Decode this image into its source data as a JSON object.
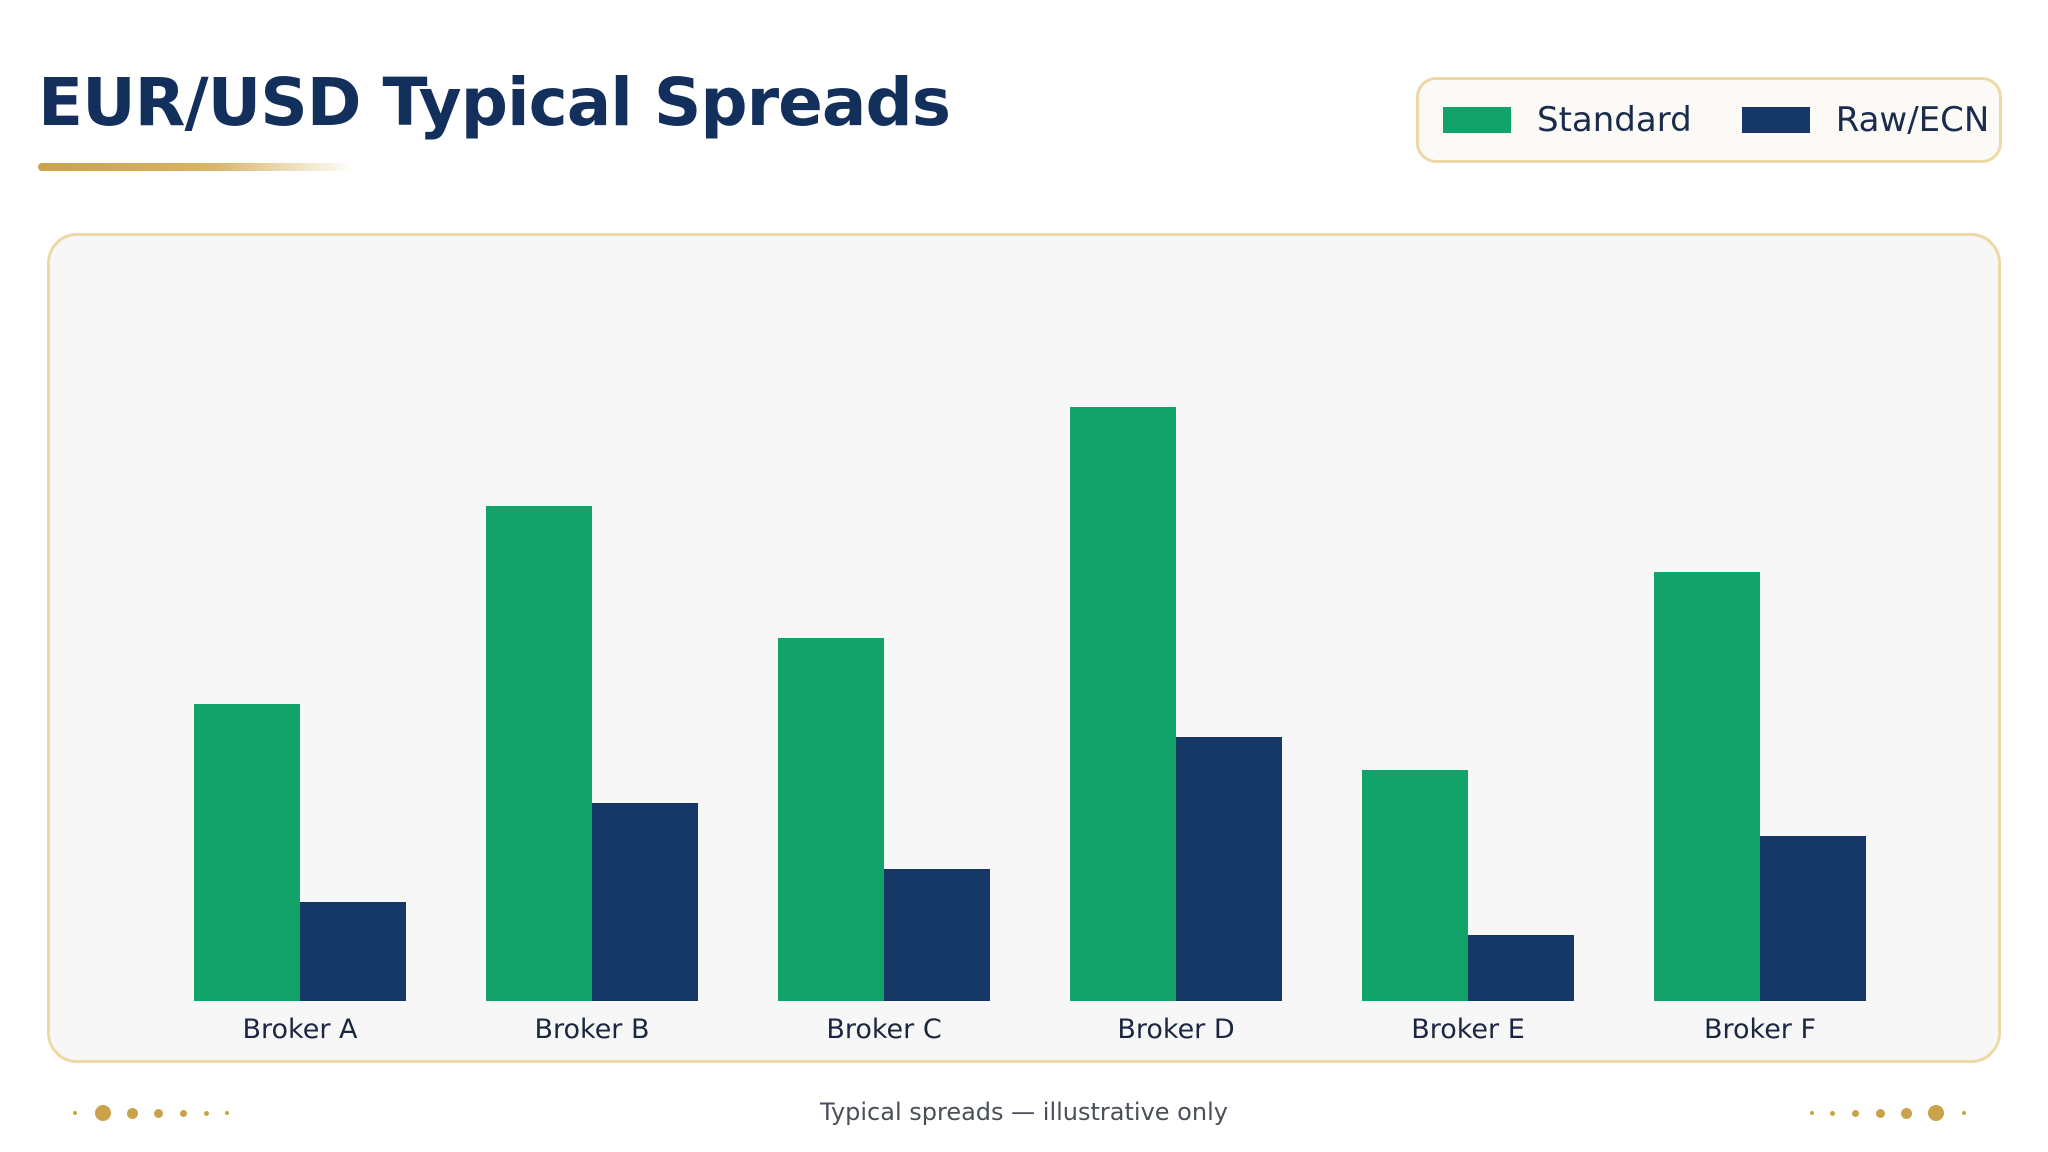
{
  "title": "EUR/USD Typical Spreads",
  "legend": {
    "items": [
      {
        "label": "Standard",
        "color": "#12a36b"
      },
      {
        "label": "Raw/ECN",
        "color": "#163866"
      }
    ]
  },
  "footer": {
    "note": "Typical spreads — illustrative only"
  },
  "colors": {
    "accent_gold": "#c9a24a",
    "title_navy": "#132f5c",
    "panel_bg": "#f7f7f7"
  },
  "chart_data": {
    "type": "bar",
    "title": "EUR/USD Typical Spreads",
    "categories": [
      "Broker A",
      "Broker B",
      "Broker C",
      "Broker D",
      "Broker E",
      "Broker F"
    ],
    "series": [
      {
        "name": "Standard",
        "color": "#12a36b",
        "values": [
          0.9,
          1.5,
          1.1,
          1.8,
          0.7,
          1.3
        ]
      },
      {
        "name": "Raw/ECN",
        "color": "#163866",
        "values": [
          0.3,
          0.6,
          0.4,
          0.8,
          0.2,
          0.5
        ]
      }
    ],
    "xlabel": "",
    "ylabel": "",
    "ylim": [
      0,
      2.0
    ],
    "grid": false,
    "legend_position": "top-right",
    "y_axis_shown": false
  }
}
